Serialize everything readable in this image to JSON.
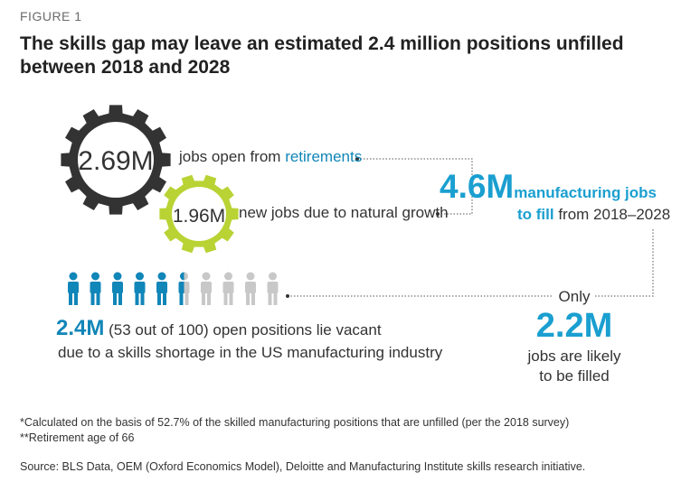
{
  "figure_label": "FIGURE 1",
  "title_line1": "The skills gap may leave an estimated 2.4 million positions unfilled",
  "title_line2": "between 2018 and 2028",
  "retirements": {
    "value": "2.69M",
    "text_prefix": "jobs open from ",
    "text_highlight": "retirements"
  },
  "growth": {
    "value": "1.96M",
    "text": "new jobs due to natural growth"
  },
  "total": {
    "value": "4.6M",
    "label_bold_1": "manufacturing jobs",
    "label_bold_2": "to fill",
    "label_rest": " from 2018–2028"
  },
  "vacant": {
    "value": "2.4M",
    "text_1": " (53 out of 100) open positions lie vacant",
    "text_2": "due to a skills shortage in the US manufacturing industry",
    "people_total": 10,
    "people_filled_blue": 5.5
  },
  "filled": {
    "prefix": "Only",
    "value": "2.2M",
    "text_1": "jobs are likely",
    "text_2": "to be filled"
  },
  "footnotes": {
    "note1": "*Calculated on the basis of 52.7% of the skilled manufacturing positions that are unfilled (per the 2018 survey)",
    "note2": "**Retirement age of 66",
    "source": "Source: BLS Data, OEM (Oxford Economics Model), Deloitte and Manufacturing Institute skills research initiative."
  },
  "colors": {
    "dark_gear": "#333333",
    "green_gear": "#b9d334",
    "blue": "#1186b8",
    "bright_blue": "#1a9fd0",
    "grey_person": "#c8c8c8"
  }
}
